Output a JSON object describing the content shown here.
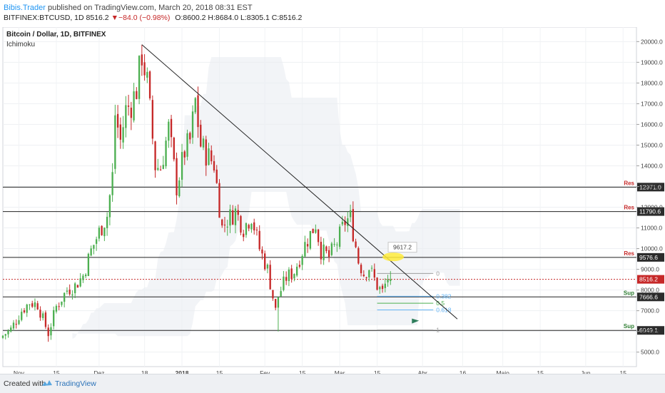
{
  "header": {
    "author": "Bibis.Trader",
    "published_text": "published on TradingView.com, March 20, 2018 08:31 EST",
    "symbol": "BITFINEX:BTCUSD, 1D",
    "last": "8516.2",
    "change_arrow": "▼",
    "change": "−84.0 (−0.98%)",
    "open": "O:8600.2",
    "high": "H:8684.0",
    "low": "L:8305.1",
    "close": "C:8516.2"
  },
  "chart_title": "Bitcoin / Dollar, 1D, BITFINEX",
  "indicator": "Ichimoku",
  "footer": {
    "created_with": "Created with",
    "brand": "TradingView"
  },
  "colors": {
    "up": "#4caf50",
    "down": "#c62828",
    "level_box": "#2b2b2b",
    "res": "#c62828",
    "sup": "#2e7d32",
    "current": "#c62828",
    "fib_blue": "#64b5f6"
  },
  "chart_data": {
    "type": "candlestick",
    "ylim": [
      4300,
      20700
    ],
    "yticks": [
      5000,
      6000,
      7000,
      8000,
      9000,
      10000,
      11000,
      12000,
      13000,
      14000,
      15000,
      16000,
      17000,
      18000,
      19000,
      20000
    ],
    "ytick_labels": [
      "5000.0",
      "6000.0",
      "7000.0",
      "8000.0",
      "9000.0",
      "10000.0",
      "11000.0",
      "12000.0",
      "13000.0",
      "14000.0",
      "15000.0",
      "16000.0",
      "17000.0",
      "18000.0",
      "19000.0",
      "20000.0"
    ],
    "xlim_days": [
      "2017-10-26",
      "2018-06-20"
    ],
    "xticks": [
      {
        "date": "2017-11-01",
        "label": "Nov",
        "bold": false
      },
      {
        "date": "2017-11-15",
        "label": "15",
        "bold": false
      },
      {
        "date": "2017-12-01",
        "label": "Dez",
        "bold": false
      },
      {
        "date": "2017-12-18",
        "label": "18",
        "bold": false
      },
      {
        "date": "2018-01-01",
        "label": "2018",
        "bold": true
      },
      {
        "date": "2018-01-15",
        "label": "15",
        "bold": false
      },
      {
        "date": "2018-02-01",
        "label": "Fev",
        "bold": false
      },
      {
        "date": "2018-02-15",
        "label": "15",
        "bold": false
      },
      {
        "date": "2018-03-01",
        "label": "Mar",
        "bold": false
      },
      {
        "date": "2018-03-15",
        "label": "15",
        "bold": false
      },
      {
        "date": "2018-04-01",
        "label": "Abr",
        "bold": false
      },
      {
        "date": "2018-04-16",
        "label": "16",
        "bold": false
      },
      {
        "date": "2018-05-01",
        "label": "Maio",
        "bold": false
      },
      {
        "date": "2018-05-15",
        "label": "15",
        "bold": false
      },
      {
        "date": "2018-06-01",
        "label": "Jun",
        "bold": false
      },
      {
        "date": "2018-06-15",
        "label": "15",
        "bold": false
      }
    ],
    "close_path": [
      [
        "2017-10-26",
        5800
      ],
      [
        "2017-10-29",
        6100
      ],
      [
        "2017-11-02",
        7000
      ],
      [
        "2017-11-05",
        7400
      ],
      [
        "2017-11-08",
        7300
      ],
      [
        "2017-11-10",
        6600
      ],
      [
        "2017-11-12",
        5900
      ],
      [
        "2017-11-15",
        7200
      ],
      [
        "2017-11-19",
        8000
      ],
      [
        "2017-11-22",
        8200
      ],
      [
        "2017-11-25",
        8700
      ],
      [
        "2017-11-28",
        9900
      ],
      [
        "2017-12-01",
        10800
      ],
      [
        "2017-12-04",
        11600
      ],
      [
        "2017-12-06",
        13500
      ],
      [
        "2017-12-07",
        16500
      ],
      [
        "2017-12-09",
        15200
      ],
      [
        "2017-12-11",
        16700
      ],
      [
        "2017-12-13",
        17000
      ],
      [
        "2017-12-15",
        17700
      ],
      [
        "2017-12-17",
        19400
      ],
      [
        "2017-12-19",
        18000
      ],
      [
        "2017-12-22",
        14000
      ],
      [
        "2017-12-24",
        13900
      ],
      [
        "2017-12-27",
        15800
      ],
      [
        "2017-12-30",
        13000
      ],
      [
        "2018-01-02",
        14700
      ],
      [
        "2018-01-04",
        15200
      ],
      [
        "2018-01-06",
        17100
      ],
      [
        "2018-01-08",
        15000
      ],
      [
        "2018-01-10",
        14600
      ],
      [
        "2018-01-13",
        14100
      ],
      [
        "2018-01-16",
        11000
      ],
      [
        "2018-01-18",
        11400
      ],
      [
        "2018-01-21",
        11800
      ],
      [
        "2018-01-24",
        11000
      ],
      [
        "2018-01-27",
        11600
      ],
      [
        "2018-01-30",
        10000
      ],
      [
        "2018-02-02",
        9000
      ],
      [
        "2018-02-05",
        7000
      ],
      [
        "2018-02-06",
        7700
      ],
      [
        "2018-02-09",
        8600
      ],
      [
        "2018-02-12",
        8900
      ],
      [
        "2018-02-16",
        10200
      ],
      [
        "2018-02-20",
        11200
      ],
      [
        "2018-02-22",
        9900
      ],
      [
        "2018-02-25",
        9600
      ],
      [
        "2018-02-28",
        10300
      ],
      [
        "2018-03-03",
        11300
      ],
      [
        "2018-03-05",
        11500
      ],
      [
        "2018-03-08",
        9400
      ],
      [
        "2018-03-10",
        8800
      ],
      [
        "2018-03-12",
        9100
      ],
      [
        "2018-03-15",
        8200
      ],
      [
        "2018-03-17",
        7900
      ],
      [
        "2018-03-19",
        8600
      ],
      [
        "2018-03-20",
        8516
      ]
    ],
    "extremes": [
      {
        "date": "2017-12-17",
        "value": 19850
      },
      {
        "date": "2018-02-06",
        "value": 6000
      },
      {
        "date": "2017-11-12",
        "value": 5500
      }
    ],
    "last_price": 8516.2,
    "levels": [
      {
        "value": 12971.0,
        "label": "12971.0",
        "tag": "Res"
      },
      {
        "value": 11790.6,
        "label": "11790.6",
        "tag": "Res"
      },
      {
        "value": 9576.6,
        "label": "9576.6",
        "tag": "Res"
      },
      {
        "value": 7666.6,
        "label": "7666.6",
        "tag": "Sup"
      },
      {
        "value": 6049.1,
        "label": "6049.1",
        "tag": "Sup"
      }
    ],
    "current_label": "8516.2",
    "trendline": {
      "from": [
        "2017-12-17",
        19850
      ],
      "to": [
        "2018-04-14",
        6600
      ]
    },
    "annotation": {
      "date": "2018-03-25",
      "value": 9617.2,
      "label": "9617.2"
    },
    "highlight": {
      "date": "2018-03-21",
      "value": 9600
    },
    "fib": [
      {
        "ratio": "0",
        "value": 8800,
        "color": "#9e9e9e"
      },
      {
        "ratio": "0.382",
        "value": 7700,
        "color": "#64b5f6"
      },
      {
        "ratio": "0.5",
        "value": 7360,
        "color": "#4caf50"
      },
      {
        "ratio": "0.618",
        "value": 7040,
        "color": "#64b5f6"
      },
      {
        "ratio": "1",
        "value": 6070,
        "color": "#9e9e9e"
      }
    ]
  }
}
